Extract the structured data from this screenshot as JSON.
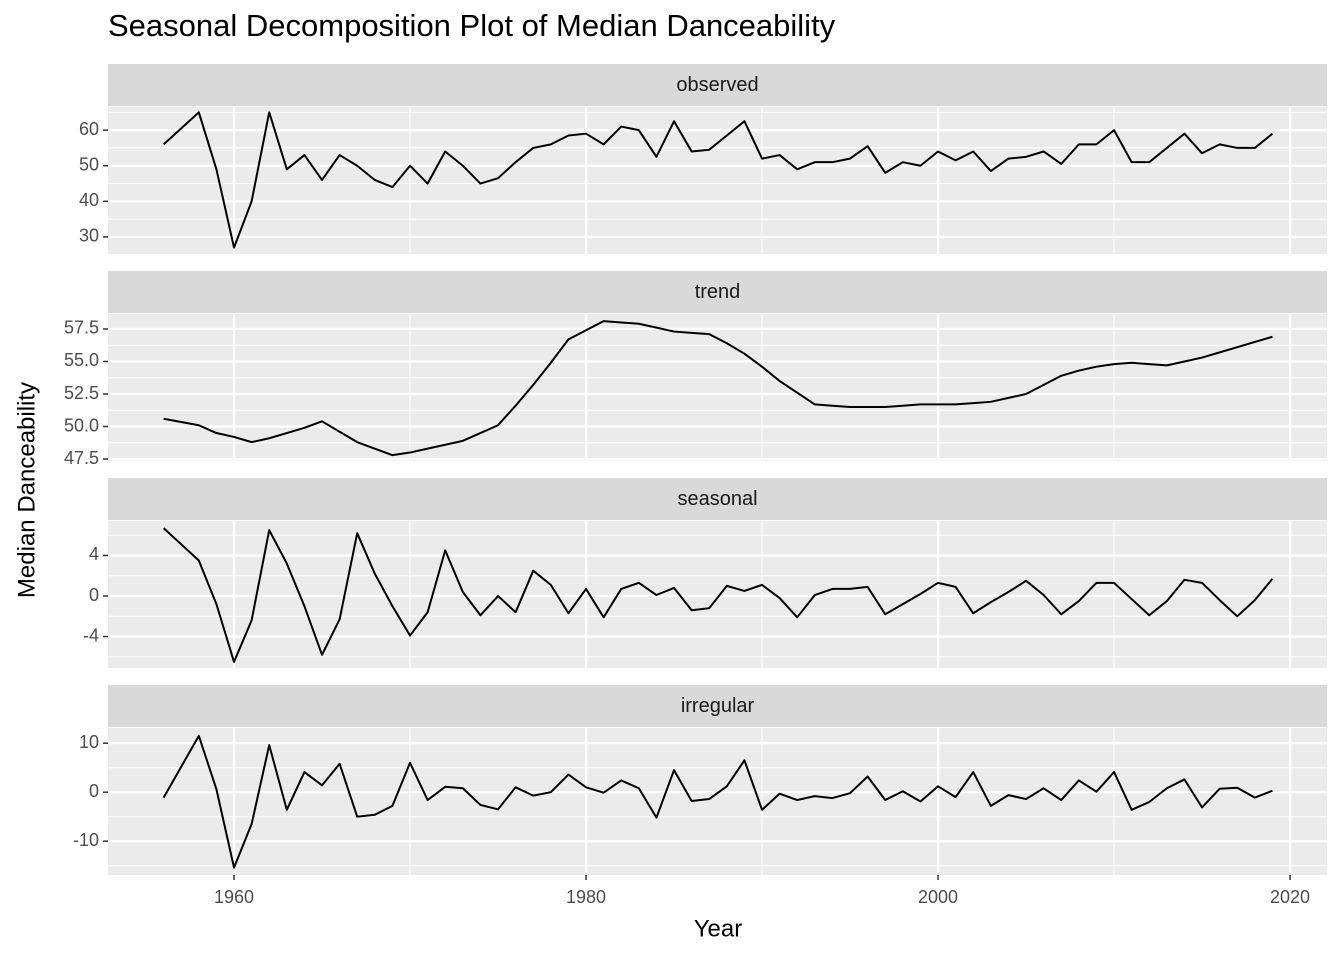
{
  "title": "Seasonal Decomposition Plot of Median Danceability",
  "x_label": "Year",
  "y_label": "Median Danceability",
  "chart_data": [
    {
      "type": "line",
      "title": "observed",
      "color": "#000000",
      "x": [
        1956,
        1957,
        1958,
        1959,
        1960,
        1961,
        1962,
        1963,
        1964,
        1965,
        1966,
        1967,
        1968,
        1969,
        1970,
        1971,
        1972,
        1973,
        1974,
        1975,
        1976,
        1977,
        1978,
        1979,
        1980,
        1981,
        1982,
        1983,
        1984,
        1985,
        1986,
        1987,
        1988,
        1989,
        1990,
        1991,
        1992,
        1993,
        1994,
        1995,
        1996,
        1997,
        1998,
        1999,
        2000,
        2001,
        2002,
        2003,
        2004,
        2005,
        2006,
        2007,
        2008,
        2009,
        2010,
        2011,
        2012,
        2013,
        2014,
        2015,
        2016,
        2017,
        2018,
        2019
      ],
      "values": [
        56,
        60.5,
        65,
        49,
        27,
        40,
        65,
        49,
        53,
        46,
        53,
        50,
        46,
        44,
        50,
        45,
        54,
        50,
        45,
        46.5,
        51,
        55,
        56,
        58.5,
        59,
        56,
        61,
        60,
        52.5,
        62.5,
        54,
        54.5,
        58.5,
        62.5,
        52,
        53,
        49,
        51,
        51,
        52,
        55.5,
        48,
        51,
        50,
        54,
        51.5,
        54,
        48.5,
        52,
        52.5,
        54,
        50.5,
        56,
        56,
        60,
        51,
        51,
        55,
        59,
        53.5,
        56,
        55,
        55,
        59
      ],
      "xlim": [
        1952.84,
        2022.1
      ],
      "xticks": [
        1960,
        1980,
        2000,
        2020
      ],
      "ylim": [
        25.2,
        66.5
      ],
      "yticks": [
        30,
        40,
        50,
        60
      ],
      "grid": true
    },
    {
      "type": "line",
      "title": "trend",
      "color": "#000000",
      "x": [
        1956,
        1957,
        1958,
        1959,
        1960,
        1961,
        1962,
        1963,
        1964,
        1965,
        1966,
        1967,
        1968,
        1969,
        1970,
        1971,
        1972,
        1973,
        1974,
        1975,
        1976,
        1977,
        1978,
        1979,
        1980,
        1981,
        1982,
        1983,
        1984,
        1985,
        1986,
        1987,
        1988,
        1989,
        1990,
        1991,
        1992,
        1993,
        1994,
        1995,
        1996,
        1997,
        1998,
        1999,
        2000,
        2001,
        2002,
        2003,
        2004,
        2005,
        2006,
        2007,
        2008,
        2009,
        2010,
        2011,
        2012,
        2013,
        2014,
        2015,
        2016,
        2017,
        2018,
        2019
      ],
      "values": [
        50.6,
        50.35,
        50.1,
        49.5,
        49.2,
        48.8,
        49.1,
        49.5,
        49.9,
        50.4,
        49.6,
        48.8,
        48.3,
        47.8,
        48.0,
        48.3,
        48.6,
        48.9,
        49.5,
        50.1,
        51.6,
        53.2,
        54.9,
        56.7,
        57.4,
        58.1,
        58.0,
        57.9,
        57.6,
        57.3,
        57.2,
        57.1,
        56.4,
        55.6,
        54.6,
        53.5,
        52.6,
        51.7,
        51.6,
        51.5,
        51.5,
        51.5,
        51.6,
        51.7,
        51.7,
        51.7,
        51.8,
        51.9,
        52.2,
        52.5,
        53.2,
        53.9,
        54.3,
        54.6,
        54.8,
        54.9,
        54.8,
        54.7,
        55.0,
        55.3,
        55.7,
        56.1,
        56.5,
        56.9
      ],
      "xlim": [
        1952.84,
        2022.1
      ],
      "xticks": [
        1960,
        1980,
        2000,
        2020
      ],
      "ylim": [
        47.35,
        58.65
      ],
      "yticks": [
        47.5,
        {
          "value": 50,
          "label": "50.0"
        },
        52.5,
        {
          "value": 55,
          "label": "55.0"
        },
        57.5
      ],
      "grid": true
    },
    {
      "type": "line",
      "title": "seasonal",
      "color": "#000000",
      "x": [
        1956,
        1957,
        1958,
        1959,
        1960,
        1961,
        1962,
        1963,
        1964,
        1965,
        1966,
        1967,
        1968,
        1969,
        1970,
        1971,
        1972,
        1973,
        1974,
        1975,
        1976,
        1977,
        1978,
        1979,
        1980,
        1981,
        1982,
        1983,
        1984,
        1985,
        1986,
        1987,
        1988,
        1989,
        1990,
        1991,
        1992,
        1993,
        1994,
        1995,
        1996,
        1997,
        1998,
        1999,
        2000,
        2001,
        2002,
        2003,
        2004,
        2005,
        2006,
        2007,
        2008,
        2009,
        2010,
        2011,
        2012,
        2013,
        2014,
        2015,
        2016,
        2017,
        2018,
        2019
      ],
      "values": [
        6.7,
        5.1,
        3.5,
        -0.8,
        -6.5,
        -2.4,
        6.5,
        3.2,
        -1.0,
        -5.8,
        -2.3,
        6.2,
        2.2,
        -1.0,
        -3.9,
        -1.6,
        4.5,
        0.4,
        -1.9,
        0,
        -1.6,
        2.5,
        1.1,
        -1.7,
        0.7,
        -2.1,
        0.7,
        1.3,
        0.1,
        0.8,
        -1.4,
        -1.2,
        1.0,
        0.5,
        1.1,
        -0.2,
        -2.1,
        0.1,
        0.7,
        0.7,
        0.9,
        -1.8,
        -0.8,
        0.2,
        1.3,
        0.9,
        -1.7,
        -0.6,
        0.4,
        1.5,
        0.1,
        -1.8,
        -0.5,
        1.3,
        1.3,
        -0.3,
        -1.9,
        -0.5,
        1.6,
        1.3,
        -0.4,
        -2.0,
        -0.4,
        1.7
      ],
      "xlim": [
        1952.84,
        2022.1
      ],
      "xticks": [
        1960,
        1980,
        2000,
        2020
      ],
      "ylim": [
        -7.1,
        7.4
      ],
      "yticks": [
        -4,
        0,
        4
      ],
      "grid": true
    },
    {
      "type": "line",
      "title": "irregular",
      "color": "#000000",
      "x": [
        1956,
        1957,
        1958,
        1959,
        1960,
        1961,
        1962,
        1963,
        1964,
        1965,
        1966,
        1967,
        1968,
        1969,
        1970,
        1971,
        1972,
        1973,
        1974,
        1975,
        1976,
        1977,
        1978,
        1979,
        1980,
        1981,
        1982,
        1983,
        1984,
        1985,
        1986,
        1987,
        1988,
        1989,
        1990,
        1991,
        1992,
        1993,
        1994,
        1995,
        1996,
        1997,
        1998,
        1999,
        2000,
        2001,
        2002,
        2003,
        2004,
        2005,
        2006,
        2007,
        2008,
        2009,
        2010,
        2011,
        2012,
        2013,
        2014,
        2015,
        2016,
        2017,
        2018,
        2019
      ],
      "values": [
        -1.1,
        5.2,
        11.5,
        0.6,
        -15.4,
        -6.5,
        9.6,
        -3.6,
        4.1,
        1.4,
        5.8,
        -5.0,
        -4.6,
        -2.8,
        6.0,
        -1.6,
        1.1,
        0.8,
        -2.6,
        -3.5,
        1.0,
        -0.7,
        0,
        3.6,
        1.0,
        -0.1,
        2.4,
        0.8,
        -5.2,
        4.5,
        -1.8,
        -1.4,
        1.2,
        6.5,
        -3.6,
        -0.3,
        -1.6,
        -0.8,
        -1.2,
        -0.2,
        3.2,
        -1.6,
        0.2,
        -1.9,
        1.2,
        -1.0,
        4.1,
        -2.8,
        -0.6,
        -1.4,
        0.8,
        -1.6,
        2.4,
        0.1,
        4.1,
        -3.6,
        -2.0,
        0.8,
        2.6,
        -3.1,
        0.7,
        0.9,
        -1.1,
        0.3
      ],
      "xlim": [
        1952.84,
        2022.1
      ],
      "xticks": [
        1960,
        1980,
        2000,
        2020
      ],
      "ylim": [
        -16.9,
        13.1
      ],
      "yticks": [
        -10,
        0,
        10
      ],
      "grid": true
    }
  ]
}
